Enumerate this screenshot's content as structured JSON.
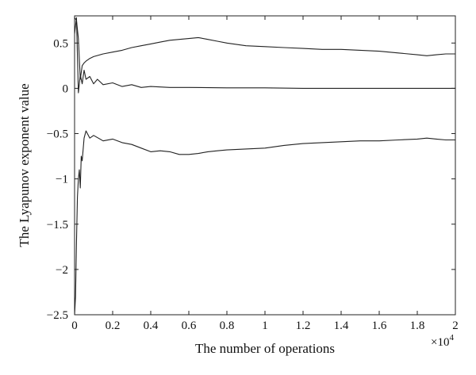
{
  "chart_data": {
    "type": "line",
    "title": "",
    "xlabel": "The number of operations",
    "ylabel": "The Lyapunov exponent value",
    "x_scale_label": "×10",
    "x_scale_exponent": "4",
    "xlim": [
      0,
      20000
    ],
    "ylim": [
      -2.5,
      0.8
    ],
    "xticks": [
      0,
      2000,
      4000,
      6000,
      8000,
      10000,
      12000,
      14000,
      16000,
      18000,
      20000
    ],
    "xtick_labels": [
      "0",
      "0.2",
      "0.4",
      "0.6",
      "0.8",
      "1",
      "1.2",
      "1.4",
      "1.6",
      "1.8",
      "2"
    ],
    "yticks": [
      0.5,
      0,
      -0.5,
      -1,
      -1.5,
      -2,
      -2.5
    ],
    "ytick_labels": [
      "0.5",
      "0",
      "−0.5",
      "−1",
      "−1.5",
      "−2",
      "−2.5"
    ],
    "grid": false,
    "line_color": "#222222",
    "series": [
      {
        "x": [
          0,
          100,
          200,
          300,
          400,
          500,
          600,
          800,
          1000,
          1500,
          2000,
          2500,
          3000,
          3500,
          4000,
          4500,
          5000,
          5500,
          6000,
          6500,
          7000,
          7500,
          8000,
          9000,
          10000,
          11000,
          12000,
          13000,
          14000,
          15000,
          16000,
          17000,
          18000,
          18500,
          19000,
          19500,
          20000
        ],
        "y": [
          0.78,
          0.75,
          0.55,
          0.1,
          0.25,
          0.28,
          0.3,
          0.33,
          0.35,
          0.38,
          0.4,
          0.42,
          0.45,
          0.47,
          0.49,
          0.51,
          0.53,
          0.54,
          0.55,
          0.56,
          0.54,
          0.52,
          0.5,
          0.47,
          0.46,
          0.45,
          0.44,
          0.43,
          0.43,
          0.42,
          0.41,
          0.39,
          0.37,
          0.36,
          0.37,
          0.38,
          0.38
        ]
      },
      {
        "x": [
          0,
          100,
          200,
          300,
          400,
          500,
          600,
          800,
          1000,
          1200,
          1500,
          2000,
          2500,
          3000,
          3500,
          4000,
          5000,
          6000,
          8000,
          10000,
          12000,
          14000,
          16000,
          18000,
          20000
        ],
        "y": [
          0.6,
          0.78,
          -0.05,
          0.15,
          0.05,
          0.2,
          0.1,
          0.13,
          0.05,
          0.1,
          0.04,
          0.06,
          0.02,
          0.04,
          0.01,
          0.02,
          0.01,
          0.01,
          0.005,
          0.005,
          0.0,
          0.0,
          0.0,
          0.0,
          0.0
        ]
      },
      {
        "x": [
          0,
          50,
          100,
          150,
          200,
          250,
          300,
          350,
          400,
          500,
          600,
          800,
          1000,
          1500,
          2000,
          2500,
          3000,
          3500,
          4000,
          4500,
          5000,
          5500,
          6000,
          6500,
          7000,
          7500,
          8000,
          9000,
          10000,
          11000,
          12000,
          13000,
          14000,
          15000,
          16000,
          17000,
          18000,
          18500,
          19000,
          19500,
          20000
        ],
        "y": [
          -2.5,
          -2.3,
          -1.7,
          -1.2,
          -1.0,
          -0.9,
          -1.1,
          -0.75,
          -0.8,
          -0.55,
          -0.47,
          -0.55,
          -0.52,
          -0.58,
          -0.56,
          -0.6,
          -0.62,
          -0.66,
          -0.7,
          -0.69,
          -0.7,
          -0.73,
          -0.73,
          -0.72,
          -0.7,
          -0.69,
          -0.68,
          -0.67,
          -0.66,
          -0.63,
          -0.61,
          -0.6,
          -0.59,
          -0.58,
          -0.58,
          -0.57,
          -0.56,
          -0.55,
          -0.56,
          -0.57,
          -0.57
        ]
      }
    ]
  }
}
